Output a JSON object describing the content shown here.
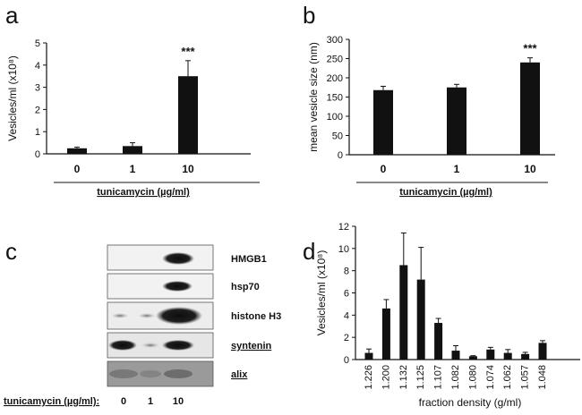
{
  "panel_labels": [
    "a",
    "b",
    "c",
    "d"
  ],
  "chart_data": [
    {
      "id": "a",
      "type": "bar",
      "categories": [
        "0",
        "1",
        "10"
      ],
      "values": [
        0.25,
        0.35,
        3.5
      ],
      "errors": [
        0.05,
        0.15,
        0.7
      ],
      "ylim": [
        0,
        5
      ],
      "yticks": [
        "0",
        "1",
        "2",
        "3",
        "4",
        "5"
      ],
      "ylabel": "Vesicles/ml (x10⁸)",
      "xlabel": "tunicamycin (µg/ml)",
      "annotations": [
        {
          "index": 2,
          "text": "***"
        }
      ]
    },
    {
      "id": "b",
      "type": "bar",
      "categories": [
        "0",
        "1",
        "10"
      ],
      "values": [
        168,
        175,
        240
      ],
      "errors": [
        10,
        8,
        12
      ],
      "ylim": [
        0,
        300
      ],
      "yticks": [
        "0",
        "50",
        "100",
        "150",
        "200",
        "250",
        "300"
      ],
      "ylabel": "mean vesicle size (nm)",
      "xlabel": "tunicamycin (µg/ml)",
      "annotations": [
        {
          "index": 2,
          "text": "***"
        }
      ]
    },
    {
      "id": "d",
      "type": "bar",
      "categories": [
        "1.226",
        "1.200",
        "1.132",
        "1.125",
        "1.107",
        "1.082",
        "1.080",
        "1.074",
        "1.062",
        "1.057",
        "1.048"
      ],
      "values": [
        0.6,
        4.6,
        8.5,
        7.2,
        3.3,
        0.8,
        0.3,
        0.9,
        0.6,
        0.5,
        1.5
      ],
      "errors": [
        0.35,
        0.8,
        2.9,
        2.9,
        0.4,
        0.45,
        0.05,
        0.2,
        0.3,
        0.15,
        0.2
      ],
      "ylim": [
        0,
        12
      ],
      "yticks": [
        "0",
        "2",
        "4",
        "6",
        "8",
        "10",
        "12"
      ],
      "ylabel": "Vesicles/ml (x10⁸)",
      "xlabel": "fraction density (g/ml)"
    }
  ],
  "blot": {
    "rows": [
      "HMGB1",
      "hsp70",
      "histone H3",
      "syntenin",
      "alix"
    ],
    "axis_label": "tunicamycin (µg/ml):",
    "lanes": [
      "0",
      "1",
      "10"
    ]
  }
}
